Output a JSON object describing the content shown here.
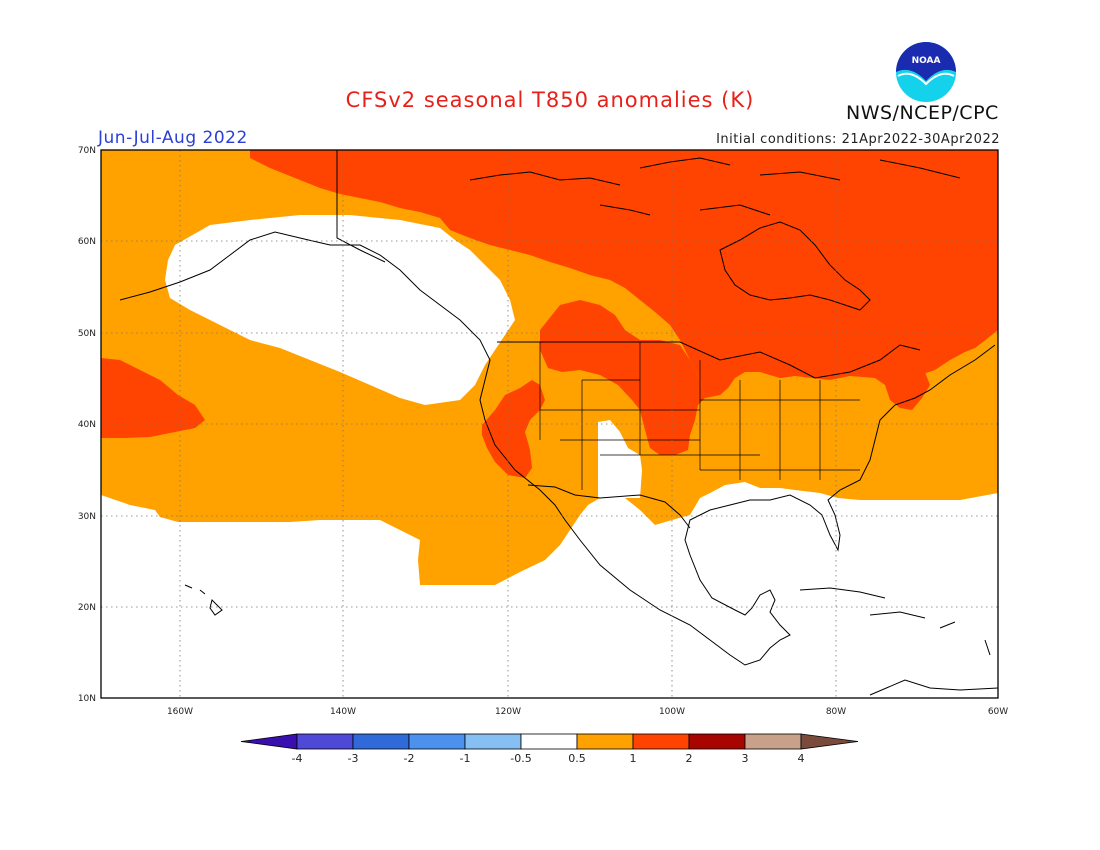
{
  "header": {
    "title": "CFSv2 seasonal T850 anomalies (K)",
    "org": "NWS/NCEP/CPC",
    "season": "Jun-Jul-Aug 2022",
    "initial_conditions": "Initial conditions: 21Apr2022-30Apr2022",
    "logo_text": "NOAA"
  },
  "map": {
    "lat_labels": [
      "70N",
      "60N",
      "50N",
      "40N",
      "30N",
      "20N",
      "10N"
    ],
    "lon_labels": [
      "160W",
      "140W",
      "120W",
      "100W",
      "80W",
      "60W"
    ]
  },
  "colorbar": {
    "tick_labels": [
      "-4",
      "-3",
      "-2",
      "-1",
      "-0.5",
      "0.5",
      "1",
      "2",
      "3",
      "4"
    ],
    "colors": [
      "#3a0fb0",
      "#4e49d6",
      "#2f6ad8",
      "#4c91ec",
      "#86bff1",
      "#ffffff",
      "#ffa200",
      "#ff4300",
      "#a80400",
      "#c9a08a",
      "#7a4a3a"
    ]
  },
  "anomaly_colors": {
    "0.5-1": "#ffa200",
    "1-2": "#ff4300",
    "neutral": "#ffffff"
  }
}
